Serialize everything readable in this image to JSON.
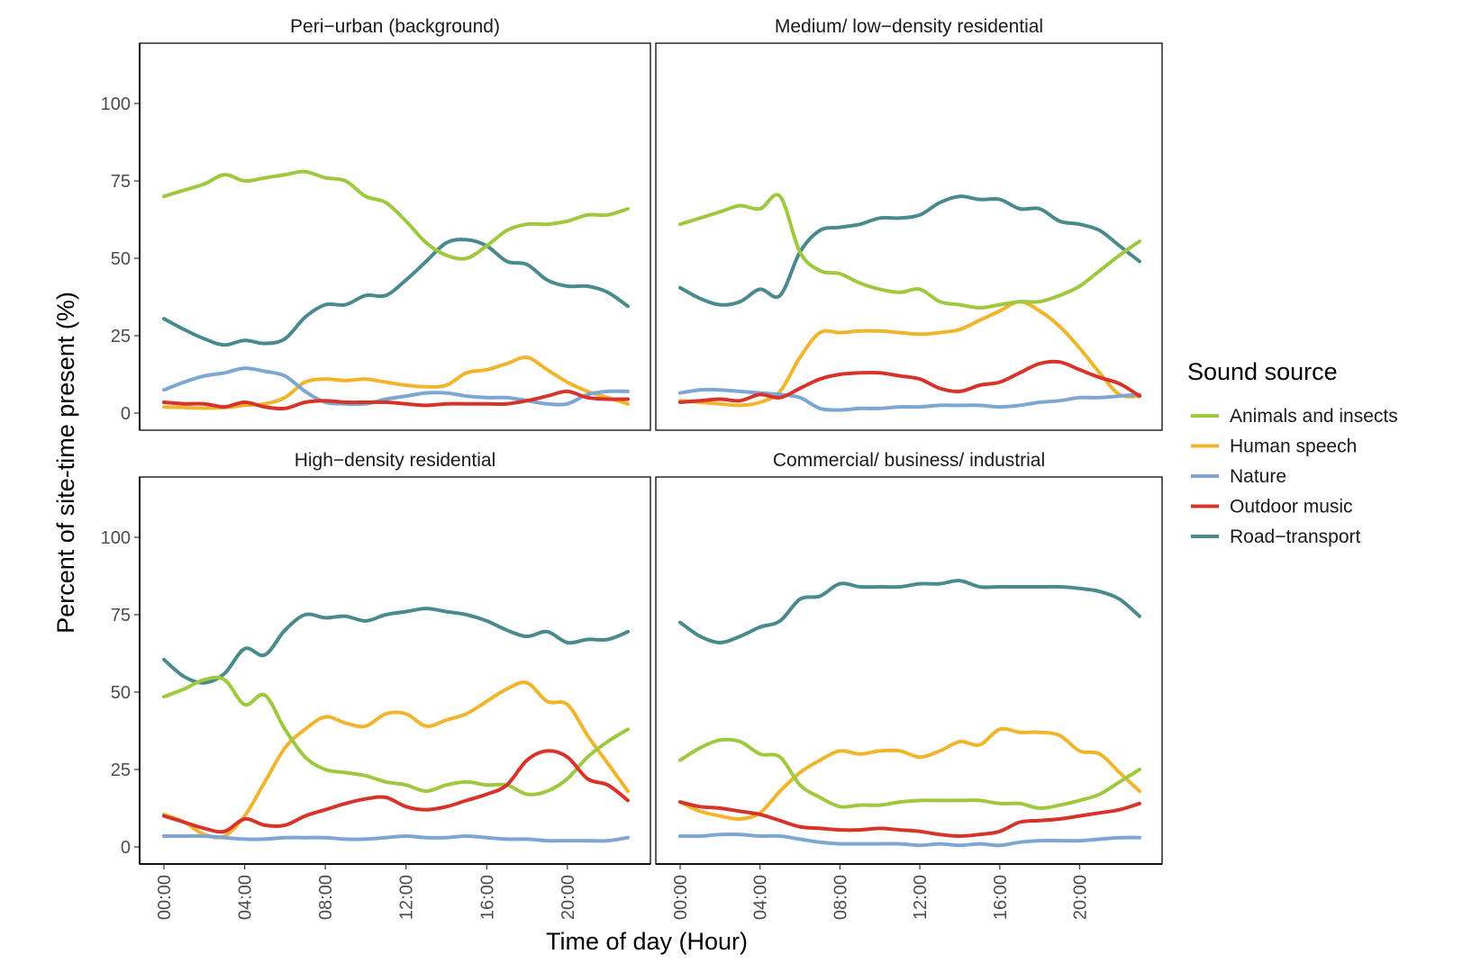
{
  "chart_data": {
    "type": "line",
    "ylabel": "Percent of site-time present (%)",
    "xlabel": "Time of day (Hour)",
    "x_ticks": [
      "00:00",
      "04:00",
      "08:00",
      "12:00",
      "16:00",
      "20:00"
    ],
    "y_ticks": [
      "0",
      "25",
      "50",
      "75",
      "100"
    ],
    "ylim": [
      0,
      100
    ],
    "xlim_hours": [
      0,
      23
    ],
    "x_hours": [
      0,
      1,
      2,
      3,
      4,
      5,
      6,
      7,
      8,
      9,
      10,
      11,
      12,
      13,
      14,
      15,
      16,
      17,
      18,
      19,
      20,
      21,
      22,
      23
    ],
    "legend": {
      "title": "Sound source",
      "position": "right",
      "entries": [
        {
          "name": "Animals and insects",
          "color": "#9ec93f"
        },
        {
          "name": "Human speech",
          "color": "#f0b52d"
        },
        {
          "name": "Nature",
          "color": "#7ea6d2"
        },
        {
          "name": "Outdoor music",
          "color": "#d6342b"
        },
        {
          "name": "Road−transport",
          "color": "#4a8a8c"
        }
      ]
    },
    "panels": [
      {
        "title": "Peri−urban (background)",
        "series": [
          {
            "name": "Animals and insects",
            "values": [
              70,
              72,
              74,
              77,
              75,
              76,
              77,
              78,
              76,
              75,
              70,
              68,
              62,
              55,
              51,
              50,
              54,
              59,
              61,
              61,
              62,
              64,
              64,
              66
            ]
          },
          {
            "name": "Human speech",
            "values": [
              2,
              1.8,
              1.6,
              1.8,
              2.5,
              3,
              5,
              10,
              11,
              10.5,
              11,
              10,
              9,
              8.5,
              9,
              13,
              14,
              16,
              18,
              14,
              10,
              7,
              5,
              3
            ]
          },
          {
            "name": "Nature",
            "values": [
              7.5,
              10,
              12,
              13,
              14.5,
              13.5,
              12,
              7,
              3.5,
              3,
              3,
              4.5,
              5.5,
              6.5,
              6.5,
              5.5,
              5,
              5,
              4,
              3,
              3,
              6,
              7,
              7
            ]
          },
          {
            "name": "Outdoor music",
            "values": [
              3.5,
              3,
              3,
              2,
              3.5,
              2,
              1.5,
              3.5,
              4,
              3.5,
              3.5,
              3.5,
              3,
              2.5,
              3,
              3,
              3,
              3,
              4,
              5.5,
              7,
              5,
              4.5,
              4.5
            ]
          },
          {
            "name": "Road−transport",
            "values": [
              30.5,
              27,
              24,
              22,
              23.5,
              22.5,
              24,
              31,
              35,
              35,
              38,
              38,
              43,
              49,
              55,
              56,
              54,
              49,
              48,
              43,
              41,
              41,
              39,
              34.5
            ]
          }
        ]
      },
      {
        "title": "Medium/ low−density residential",
        "series": [
          {
            "name": "Animals and insects",
            "values": [
              61,
              63,
              65,
              67,
              66,
              70,
              52,
              46,
              45,
              42,
              40,
              39,
              40,
              36,
              35,
              34,
              35,
              36,
              36,
              38,
              41,
              46,
              51,
              55.5
            ]
          },
          {
            "name": "Human speech",
            "values": [
              4,
              3.5,
              3,
              2.5,
              3.5,
              7,
              18,
              26,
              26,
              26.5,
              26.5,
              26,
              25.5,
              26,
              27,
              30,
              33,
              36,
              33,
              28,
              21,
              13,
              6,
              5.5
            ]
          },
          {
            "name": "Nature",
            "values": [
              6.5,
              7.5,
              7.5,
              7,
              6.5,
              6,
              5,
              1.5,
              1,
              1.5,
              1.5,
              2,
              2,
              2.5,
              2.5,
              2.5,
              2,
              2.5,
              3.5,
              4,
              5,
              5,
              5.5,
              6
            ]
          },
          {
            "name": "Outdoor music",
            "values": [
              3.5,
              4,
              4.5,
              4,
              6,
              5,
              8,
              11,
              12.5,
              13,
              13,
              12,
              11,
              8,
              7,
              9,
              10,
              13,
              16,
              16.5,
              14,
              11.5,
              9.5,
              5.5
            ]
          },
          {
            "name": "Road−transport",
            "values": [
              40.5,
              37,
              35,
              36,
              40,
              38,
              52,
              59,
              60,
              61,
              63,
              63,
              64,
              68,
              70,
              69,
              69,
              66,
              66,
              62,
              61,
              59,
              54,
              49
            ]
          }
        ]
      },
      {
        "title": "High−density residential",
        "series": [
          {
            "name": "Animals and insects",
            "values": [
              48.5,
              51,
              54,
              54,
              46,
              49,
              38,
              29,
              25,
              24,
              23,
              21,
              20,
              18,
              20,
              21,
              20,
              20,
              17,
              18,
              22,
              29,
              34,
              38
            ]
          },
          {
            "name": "Human speech",
            "values": [
              10.5,
              8,
              4,
              3.5,
              10,
              21,
              32,
              38,
              42,
              40,
              39,
              43,
              43,
              39,
              41,
              43,
              47,
              51,
              53,
              47,
              46,
              36,
              27,
              18
            ]
          },
          {
            "name": "Nature",
            "values": [
              3.5,
              3.5,
              3.5,
              3,
              2.5,
              2.5,
              3,
              3,
              3,
              2.5,
              2.5,
              3,
              3.5,
              3,
              3,
              3.5,
              3,
              2.5,
              2.5,
              2,
              2,
              2,
              2,
              3
            ]
          },
          {
            "name": "Outdoor music",
            "values": [
              10,
              8,
              6,
              5,
              9,
              7,
              7,
              10,
              12,
              14,
              15.5,
              16,
              13,
              12,
              13,
              15,
              17,
              20,
              28,
              31,
              29,
              22,
              20,
              15
            ]
          },
          {
            "name": "Road−transport",
            "values": [
              60.5,
              55,
              53,
              56,
              64,
              62,
              70,
              75,
              74,
              74.5,
              73,
              75,
              76,
              77,
              76,
              75,
              73,
              70,
              68,
              69.5,
              66,
              67,
              67,
              69.5
            ]
          }
        ]
      },
      {
        "title": "Commercial/ business/ industrial",
        "series": [
          {
            "name": "Animals and insects",
            "values": [
              28,
              32,
              34.5,
              34,
              30,
              29,
              20,
              16,
              13,
              13.5,
              13.5,
              14.5,
              15,
              15,
              15,
              15,
              14,
              14,
              12.5,
              13.5,
              15,
              17,
              21,
              25
            ]
          },
          {
            "name": "Human speech",
            "values": [
              14.5,
              11.5,
              10,
              9,
              11,
              18,
              24,
              28,
              31,
              30,
              31,
              31,
              29,
              31,
              34,
              33,
              38,
              37,
              37,
              36,
              31,
              30,
              24,
              18
            ]
          },
          {
            "name": "Nature",
            "values": [
              3.5,
              3.5,
              4,
              4,
              3.5,
              3.5,
              2.5,
              1.5,
              1,
              1,
              1,
              1,
              0.5,
              1,
              0.5,
              1,
              0.5,
              1.5,
              2,
              2,
              2,
              2.5,
              3,
              3
            ]
          },
          {
            "name": "Outdoor music",
            "values": [
              14.5,
              13,
              12.5,
              11.5,
              10.5,
              8.5,
              6.5,
              6,
              5.5,
              5.5,
              6,
              5.5,
              5,
              4,
              3.5,
              4,
              5,
              8,
              8.5,
              9,
              10,
              11,
              12,
              14
            ]
          },
          {
            "name": "Road−transport",
            "values": [
              72.5,
              68,
              66,
              68,
              71,
              73,
              80,
              81,
              85,
              84,
              84,
              84,
              85,
              85,
              86,
              84,
              84,
              84,
              84,
              84,
              83.5,
              82.5,
              80,
              74.5
            ]
          }
        ]
      }
    ]
  }
}
